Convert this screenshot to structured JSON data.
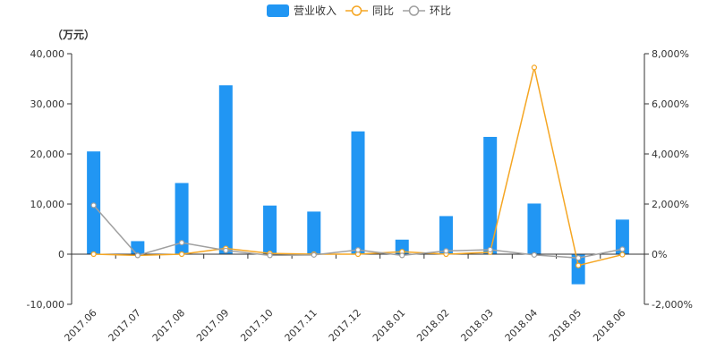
{
  "chart_data": {
    "type": "bar",
    "unit": "（万元）",
    "categories": [
      "2017.06",
      "2017.07",
      "2017.08",
      "2017.09",
      "2017.10",
      "2017.11",
      "2017.12",
      "2018.01",
      "2018.02",
      "2018.03",
      "2018.04",
      "2018.05",
      "2018.06"
    ],
    "y_left": {
      "ticks": [
        "-10,000",
        "0",
        "10,000",
        "20,000",
        "30,000",
        "40,000"
      ],
      "min": -10000,
      "max": 40000
    },
    "y_right": {
      "ticks": [
        "-2,000%",
        "0%",
        "2,000%",
        "4,000%",
        "6,000%",
        "8,000%"
      ],
      "min": -2000,
      "max": 8000
    },
    "series": [
      {
        "name": "营业收入",
        "type": "bar",
        "axis": "left",
        "color": "#2196f3",
        "values": [
          20500,
          2600,
          14200,
          33700,
          9700,
          8500,
          24500,
          2900,
          7600,
          23400,
          10100,
          -6000,
          6900
        ]
      },
      {
        "name": "同比",
        "type": "line",
        "axis": "right",
        "color": "#f5a623",
        "values": [
          0,
          -50,
          0,
          230,
          30,
          0,
          0,
          100,
          0,
          80,
          7450,
          -450,
          -20
        ]
      },
      {
        "name": "环比",
        "type": "line",
        "axis": "right",
        "color": "#a0a0a0",
        "values": [
          1950,
          -50,
          460,
          150,
          -50,
          -30,
          170,
          -50,
          130,
          180,
          -30,
          -150,
          200
        ]
      }
    ],
    "legend_position": "top-center",
    "grid": false
  }
}
